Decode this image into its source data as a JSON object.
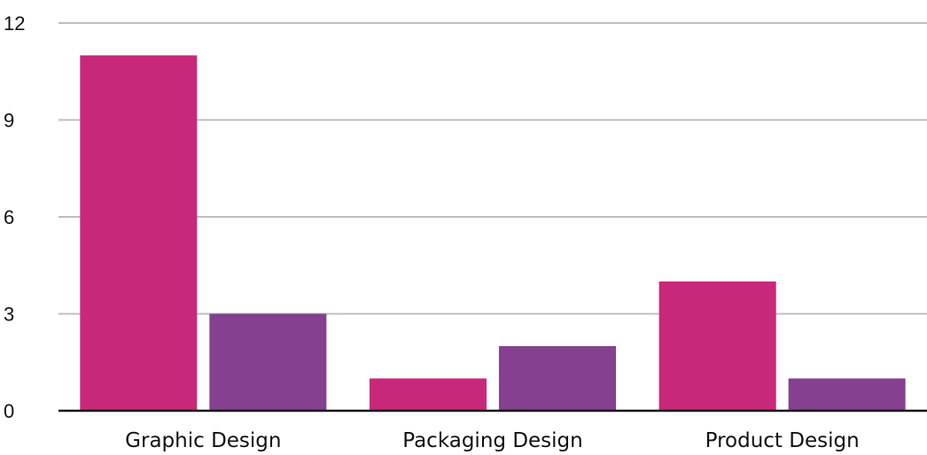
{
  "chart_data": {
    "type": "bar",
    "title": "",
    "xlabel": "",
    "ylabel": "",
    "categories": [
      "Graphic Design",
      "Packaging Design",
      "Product Design"
    ],
    "series": [
      {
        "values": [
          11,
          1,
          4
        ],
        "color": "#c8287a"
      },
      {
        "values": [
          3,
          2,
          1
        ],
        "color": "#85408f"
      }
    ],
    "ylim": [
      0,
      12
    ],
    "yticks": [
      0,
      3,
      6,
      9,
      12
    ],
    "grid": true,
    "legend": "none"
  }
}
